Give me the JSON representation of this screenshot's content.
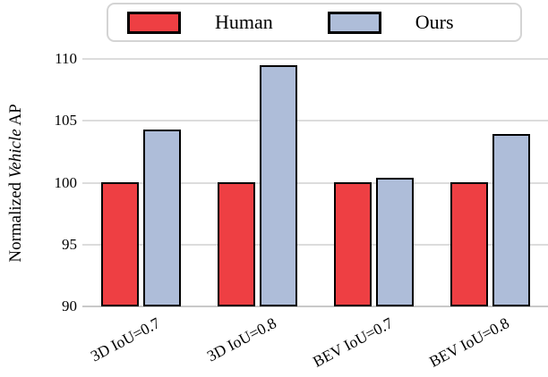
{
  "chart_data": {
    "type": "bar",
    "categories": [
      "3D IoU=0.7",
      "3D IoU=0.8",
      "BEV IoU=0.7",
      "BEV IoU=0.8"
    ],
    "series": [
      {
        "name": "Human",
        "color": "#ee3f43",
        "values": [
          100,
          100,
          100,
          100
        ]
      },
      {
        "name": "Ours",
        "color": "#aebdd9",
        "values": [
          104.3,
          109.5,
          100.4,
          103.9
        ]
      }
    ],
    "title": "",
    "xlabel": "",
    "ylabel": "Normalized Vehicle AP",
    "ylabel_parts": [
      {
        "text": "Normalized ",
        "italic": false
      },
      {
        "text": "Vehicle",
        "italic": true
      },
      {
        "text": " AP",
        "italic": false
      }
    ],
    "ylim": [
      90,
      110
    ],
    "yticks": [
      90,
      95,
      100,
      105,
      110
    ],
    "grid": true,
    "legend_position": "top",
    "bar_edge_color": "#000000"
  },
  "legend": {
    "items": [
      {
        "label": "Human",
        "swatch_color": "#ee3f43"
      },
      {
        "label": "Ours",
        "swatch_color": "#aebdd9"
      }
    ]
  },
  "colors": {
    "human_bar": "#ee3f43",
    "ours_bar": "#aebdd9",
    "gridline": "#dcdcdc",
    "axis_line": "#c9c9c9",
    "legend_border": "#d4d4d4",
    "text": "#000000"
  }
}
